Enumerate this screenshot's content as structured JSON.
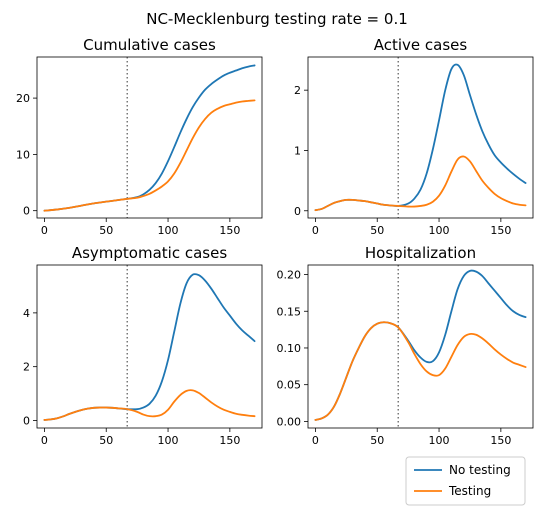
{
  "figure": {
    "suptitle": "NC-Mecklenburg testing rate = 0.1",
    "colors": {
      "no_testing": "#1f77b4",
      "testing": "#ff7f0e",
      "vline": "#777777"
    }
  },
  "legend": {
    "placement": "lower-right",
    "entries": [
      {
        "label": "No testing",
        "color": "#1f77b4"
      },
      {
        "label": "Testing",
        "color": "#ff7f0e"
      }
    ]
  },
  "chart_data": [
    {
      "type": "line",
      "title": "Cumulative cases",
      "xlim": [
        -6,
        176
      ],
      "ylim": [
        -1.3,
        27.3
      ],
      "xticks": [
        0,
        50,
        100,
        150
      ],
      "yticks": [
        0,
        10,
        20
      ],
      "vline_x": 67,
      "series": [
        {
          "name": "No testing",
          "x": [
            0,
            10,
            20,
            30,
            40,
            50,
            60,
            67,
            75,
            80,
            85,
            90,
            95,
            100,
            105,
            110,
            115,
            120,
            125,
            130,
            135,
            140,
            145,
            150,
            155,
            160,
            165,
            170
          ],
          "y": [
            0,
            0.2,
            0.5,
            0.9,
            1.3,
            1.6,
            1.9,
            2.1,
            2.4,
            2.9,
            3.7,
            4.9,
            6.6,
            8.8,
            11.3,
            13.9,
            16.3,
            18.4,
            20.1,
            21.5,
            22.5,
            23.3,
            24.0,
            24.5,
            24.9,
            25.3,
            25.6,
            25.8
          ]
        },
        {
          "name": "Testing",
          "x": [
            0,
            10,
            20,
            30,
            40,
            50,
            60,
            67,
            75,
            80,
            85,
            90,
            95,
            100,
            105,
            110,
            115,
            120,
            125,
            130,
            135,
            140,
            145,
            150,
            155,
            160,
            165,
            170
          ],
          "y": [
            0,
            0.2,
            0.5,
            0.9,
            1.3,
            1.6,
            1.9,
            2.1,
            2.3,
            2.6,
            3.0,
            3.6,
            4.3,
            5.2,
            6.6,
            8.5,
            10.7,
            12.9,
            14.8,
            16.3,
            17.4,
            18.1,
            18.6,
            18.9,
            19.2,
            19.4,
            19.5,
            19.6
          ]
        }
      ]
    },
    {
      "type": "line",
      "title": "Active cases",
      "xlim": [
        -6,
        176
      ],
      "ylim": [
        -0.12,
        2.55
      ],
      "xticks": [
        0,
        50,
        100,
        150
      ],
      "yticks": [
        0,
        1,
        2
      ],
      "vline_x": 67,
      "series": [
        {
          "name": "No testing",
          "x": [
            0,
            5,
            10,
            15,
            20,
            25,
            30,
            35,
            40,
            45,
            50,
            55,
            60,
            67,
            75,
            80,
            85,
            90,
            95,
            100,
            105,
            110,
            115,
            120,
            125,
            130,
            135,
            140,
            145,
            150,
            155,
            160,
            165,
            170
          ],
          "y": [
            0.01,
            0.03,
            0.08,
            0.13,
            0.16,
            0.18,
            0.18,
            0.17,
            0.16,
            0.14,
            0.12,
            0.1,
            0.09,
            0.08,
            0.12,
            0.2,
            0.35,
            0.62,
            1.02,
            1.5,
            2.0,
            2.35,
            2.42,
            2.25,
            1.92,
            1.6,
            1.32,
            1.1,
            0.92,
            0.8,
            0.7,
            0.61,
            0.53,
            0.46
          ]
        },
        {
          "name": "Testing",
          "x": [
            0,
            5,
            10,
            15,
            20,
            25,
            30,
            35,
            40,
            45,
            50,
            55,
            60,
            67,
            75,
            80,
            85,
            90,
            95,
            100,
            105,
            110,
            115,
            120,
            125,
            130,
            135,
            140,
            145,
            150,
            155,
            160,
            165,
            170
          ],
          "y": [
            0.01,
            0.03,
            0.08,
            0.13,
            0.16,
            0.18,
            0.18,
            0.17,
            0.16,
            0.14,
            0.12,
            0.1,
            0.09,
            0.08,
            0.07,
            0.07,
            0.08,
            0.1,
            0.15,
            0.25,
            0.42,
            0.65,
            0.85,
            0.9,
            0.82,
            0.66,
            0.5,
            0.38,
            0.28,
            0.21,
            0.16,
            0.12,
            0.1,
            0.09
          ]
        }
      ]
    },
    {
      "type": "line",
      "title": "Asymptomatic cases",
      "xlim": [
        -6,
        176
      ],
      "ylim": [
        -0.28,
        5.78
      ],
      "xticks": [
        0,
        50,
        100,
        150
      ],
      "yticks": [
        0,
        2,
        4
      ],
      "vline_x": 67,
      "series": [
        {
          "name": "No testing",
          "x": [
            0,
            5,
            10,
            15,
            20,
            25,
            30,
            35,
            40,
            45,
            50,
            55,
            60,
            67,
            75,
            80,
            85,
            90,
            95,
            100,
            105,
            110,
            115,
            120,
            125,
            130,
            135,
            140,
            145,
            150,
            155,
            160,
            165,
            170
          ],
          "y": [
            0.02,
            0.04,
            0.08,
            0.15,
            0.24,
            0.32,
            0.39,
            0.44,
            0.47,
            0.48,
            0.48,
            0.47,
            0.45,
            0.42,
            0.42,
            0.48,
            0.62,
            0.92,
            1.45,
            2.25,
            3.3,
            4.35,
            5.1,
            5.42,
            5.4,
            5.2,
            4.9,
            4.55,
            4.2,
            3.9,
            3.6,
            3.35,
            3.15,
            2.95
          ]
        },
        {
          "name": "Testing",
          "x": [
            0,
            5,
            10,
            15,
            20,
            25,
            30,
            35,
            40,
            45,
            50,
            55,
            60,
            67,
            75,
            80,
            85,
            90,
            95,
            100,
            105,
            110,
            115,
            120,
            125,
            130,
            135,
            140,
            145,
            150,
            155,
            160,
            165,
            170
          ],
          "y": [
            0.02,
            0.04,
            0.08,
            0.15,
            0.24,
            0.32,
            0.39,
            0.44,
            0.47,
            0.48,
            0.48,
            0.47,
            0.45,
            0.42,
            0.32,
            0.22,
            0.16,
            0.16,
            0.22,
            0.4,
            0.7,
            0.95,
            1.1,
            1.12,
            1.02,
            0.85,
            0.67,
            0.52,
            0.4,
            0.32,
            0.25,
            0.21,
            0.18,
            0.16
          ]
        }
      ]
    },
    {
      "type": "line",
      "title": "Hospitalization",
      "xlim": [
        -6,
        176
      ],
      "ylim": [
        -0.009,
        0.213
      ],
      "xticks": [
        0,
        50,
        100,
        150
      ],
      "yticks": [
        0.0,
        0.05,
        0.1,
        0.15,
        0.2
      ],
      "vline_x": 67,
      "series": [
        {
          "name": "No testing",
          "x": [
            0,
            5,
            10,
            15,
            20,
            25,
            30,
            35,
            40,
            45,
            50,
            55,
            60,
            67,
            75,
            80,
            85,
            90,
            95,
            100,
            105,
            110,
            115,
            120,
            125,
            130,
            135,
            140,
            145,
            150,
            155,
            160,
            165,
            170
          ],
          "y": [
            0.002,
            0.004,
            0.009,
            0.02,
            0.038,
            0.06,
            0.082,
            0.1,
            0.116,
            0.127,
            0.133,
            0.135,
            0.134,
            0.128,
            0.11,
            0.097,
            0.087,
            0.081,
            0.082,
            0.094,
            0.118,
            0.15,
            0.18,
            0.198,
            0.205,
            0.204,
            0.198,
            0.188,
            0.178,
            0.168,
            0.158,
            0.15,
            0.145,
            0.142
          ]
        },
        {
          "name": "Testing",
          "x": [
            0,
            5,
            10,
            15,
            20,
            25,
            30,
            35,
            40,
            45,
            50,
            55,
            60,
            67,
            75,
            80,
            85,
            90,
            95,
            100,
            105,
            110,
            115,
            120,
            125,
            130,
            135,
            140,
            145,
            150,
            155,
            160,
            165,
            170
          ],
          "y": [
            0.002,
            0.004,
            0.009,
            0.02,
            0.038,
            0.06,
            0.082,
            0.1,
            0.116,
            0.127,
            0.133,
            0.135,
            0.134,
            0.128,
            0.108,
            0.092,
            0.078,
            0.068,
            0.063,
            0.063,
            0.072,
            0.088,
            0.104,
            0.115,
            0.119,
            0.118,
            0.113,
            0.106,
            0.098,
            0.091,
            0.085,
            0.08,
            0.077,
            0.074
          ]
        }
      ]
    }
  ]
}
